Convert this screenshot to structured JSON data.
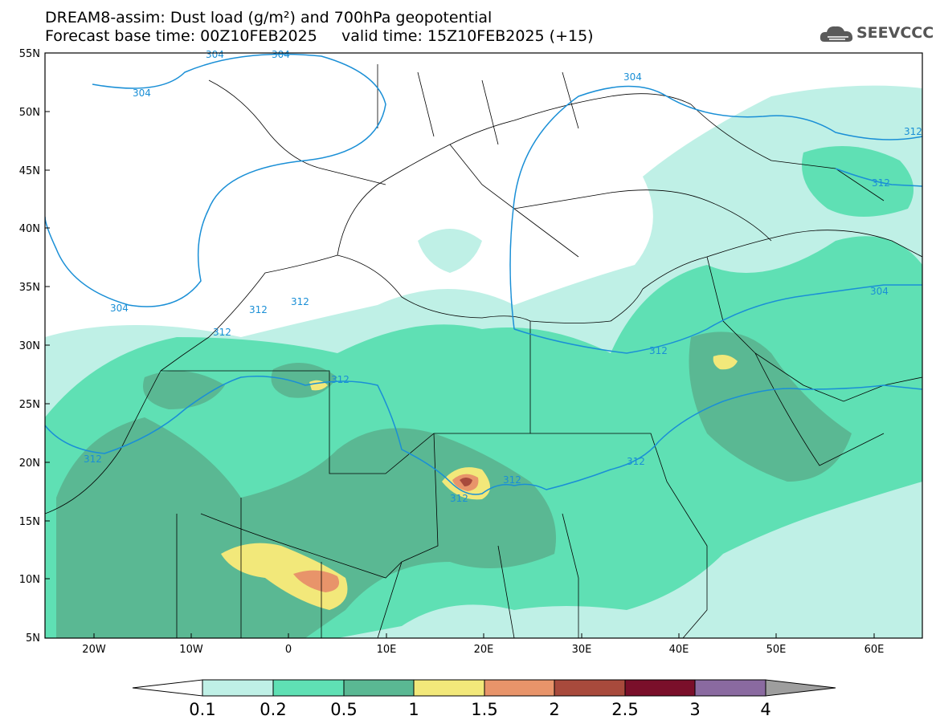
{
  "title": {
    "line1": "DREAM8-assim: Dust load (g/m²) and 700hPa geopotential",
    "line2": "Forecast base time: 00Z10FEB2025     valid time: 15Z10FEB2025 (+15)"
  },
  "logo": {
    "text": "SEEVCCC",
    "icon": "cloud-icon"
  },
  "lat_labels": [
    "55N",
    "50N",
    "45N",
    "40N",
    "35N",
    "30N",
    "25N",
    "20N",
    "15N",
    "10N",
    "5N"
  ],
  "lon_labels": [
    "20W",
    "10W",
    "0",
    "10E",
    "20E",
    "30E",
    "40E",
    "50E",
    "60E"
  ],
  "contour_labels": [
    "304",
    "304",
    "304",
    "304",
    "304",
    "304",
    "312",
    "312",
    "312",
    "312",
    "312",
    "312",
    "312",
    "312",
    "312",
    "312",
    "312"
  ],
  "colorbar": {
    "labels": [
      "0.1",
      "0.2",
      "0.5",
      "1",
      "1.5",
      "2",
      "2.5",
      "3",
      "4"
    ],
    "colors": [
      "#ffffff",
      "#bff0e6",
      "#5fe0b4",
      "#5ab893",
      "#f2e87a",
      "#e8946a",
      "#a84a3c",
      "#7a0f2a",
      "#8a6aa0",
      "#9e9e9e"
    ]
  },
  "colors": {
    "contour": "#1a8fd6",
    "level1": "#bff0e6",
    "level2": "#5fe0b4",
    "level3": "#5ab893",
    "level4": "#f2e87a",
    "level5": "#e8946a",
    "level6": "#a84a3c"
  }
}
